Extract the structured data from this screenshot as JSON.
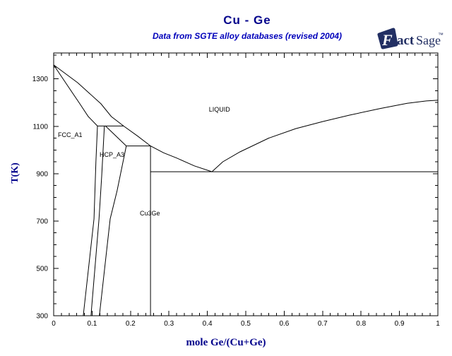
{
  "logo": {
    "f": "F",
    "act": "act",
    "sage": "Sage",
    "tm": "™",
    "color": "#222F63"
  },
  "chart_data": {
    "type": "line",
    "title": "Cu - Ge",
    "subtitle": "Data from SGTE alloy databases (revised 2004)",
    "xlabel": "mole Ge/(Cu+Ge)",
    "ylabel": "T(K)",
    "xlim": [
      0,
      1
    ],
    "ylim": [
      300,
      1409
    ],
    "grid": false,
    "legend": "none",
    "line_color": "#000000",
    "title_color": "#00008B",
    "subtitle_color": "#0000BB",
    "x_axis": {
      "label": "mole Ge/(Cu+Ge)",
      "minor_step": 0.02,
      "major_step": 0.1,
      "ticks": [
        {
          "v": 0,
          "label": "0"
        },
        {
          "v": 0.1,
          "label": "0.1"
        },
        {
          "v": 0.2,
          "label": "0.2"
        },
        {
          "v": 0.3,
          "label": "0.3"
        },
        {
          "v": 0.4,
          "label": "0.4"
        },
        {
          "v": 0.5,
          "label": "0.5"
        },
        {
          "v": 0.6,
          "label": "0.6"
        },
        {
          "v": 0.7,
          "label": "0.7"
        },
        {
          "v": 0.8,
          "label": "0.8"
        },
        {
          "v": 0.9,
          "label": "0.9"
        },
        {
          "v": 1,
          "label": "1"
        }
      ]
    },
    "y_axis": {
      "label": "T(K)",
      "minor_step": 50,
      "major_step": 200,
      "ticks": [
        {
          "v": 300,
          "label": "300"
        },
        {
          "v": 500,
          "label": "500"
        },
        {
          "v": 700,
          "label": "700"
        },
        {
          "v": 900,
          "label": "900"
        },
        {
          "v": 1100,
          "label": "1100"
        },
        {
          "v": 1300,
          "label": "1300"
        }
      ]
    },
    "series": [
      {
        "name": "liquidus-left",
        "points": [
          [
            0,
            1359
          ],
          [
            0.0625,
            1284
          ],
          [
            0.123,
            1195
          ],
          [
            0.15,
            1141
          ],
          [
            0.182,
            1101
          ]
        ]
      },
      {
        "name": "fcc-solidus",
        "points": [
          [
            0,
            1359
          ],
          [
            0.031,
            1284
          ],
          [
            0.068,
            1195
          ],
          [
            0.09,
            1141
          ],
          [
            0.114,
            1101
          ]
        ]
      },
      {
        "name": "peritectic-line-1101K",
        "points": [
          [
            0.114,
            1101
          ],
          [
            0.182,
            1101
          ]
        ]
      },
      {
        "name": "fcc-solvus",
        "points": [
          [
            0.114,
            1101
          ],
          [
            0.11,
            950
          ],
          [
            0.105,
            709
          ],
          [
            0.077,
            300
          ]
        ]
      },
      {
        "name": "hcp-left-boundary",
        "points": [
          [
            0.132,
            1101
          ],
          [
            0.125,
            890
          ],
          [
            0.118,
            709
          ],
          [
            0.097,
            300
          ]
        ]
      },
      {
        "name": "hcp-solidus",
        "points": [
          [
            0.135,
            1101
          ],
          [
            0.189,
            1017
          ]
        ]
      },
      {
        "name": "hcp-right-solvus",
        "points": [
          [
            0.189,
            1017
          ],
          [
            0.165,
            828
          ],
          [
            0.147,
            709
          ],
          [
            0.119,
            300
          ]
        ]
      },
      {
        "name": "peritectic-line-1017K",
        "points": [
          [
            0.189,
            1017
          ],
          [
            0.252,
            1017
          ]
        ]
      },
      {
        "name": "cu3ge-stoichiometric-line",
        "points": [
          [
            0.252,
            1017
          ],
          [
            0.252,
            300
          ]
        ]
      },
      {
        "name": "liquidus-middle",
        "points": [
          [
            0.182,
            1101
          ],
          [
            0.219,
            1058
          ],
          [
            0.252,
            1017
          ],
          [
            0.286,
            988
          ],
          [
            0.32,
            966
          ],
          [
            0.366,
            933
          ],
          [
            0.412,
            908
          ]
        ]
      },
      {
        "name": "eutectic-line-908K",
        "points": [
          [
            0.252,
            908
          ],
          [
            1,
            908
          ]
        ]
      },
      {
        "name": "liquidus-right",
        "points": [
          [
            0.412,
            908
          ],
          [
            0.44,
            950
          ],
          [
            0.485,
            992
          ],
          [
            0.56,
            1050
          ],
          [
            0.63,
            1090
          ],
          [
            0.7,
            1120
          ],
          [
            0.77,
            1147
          ],
          [
            0.85,
            1175
          ],
          [
            0.92,
            1197
          ],
          [
            0.97,
            1207
          ],
          [
            1,
            1210
          ]
        ]
      }
    ],
    "region_labels": [
      {
        "text": "LIQUID",
        "x": 0.404,
        "T": 1171
      },
      {
        "text": "FCC_A1",
        "x": 0.011,
        "T": 1063
      },
      {
        "text": "HCP_A3",
        "x": 0.1195,
        "T": 980
      },
      {
        "text": "Cu3Ge",
        "x": 0.2243,
        "T": 733
      }
    ],
    "invariant_points": [
      {
        "name": "Cu melting",
        "x": 0,
        "T": 1359
      },
      {
        "name": "Ge melting",
        "x": 1,
        "T": 1210
      },
      {
        "name": "peritectic L+FCC_A1=HCP_A3",
        "x": 0.132,
        "T": 1101
      },
      {
        "name": "peritectic L+HCP_A3=Cu3Ge",
        "x": 0.252,
        "T": 1017
      },
      {
        "name": "eutectic L=Cu3Ge+Ge",
        "x": 0.412,
        "T": 908
      }
    ]
  }
}
